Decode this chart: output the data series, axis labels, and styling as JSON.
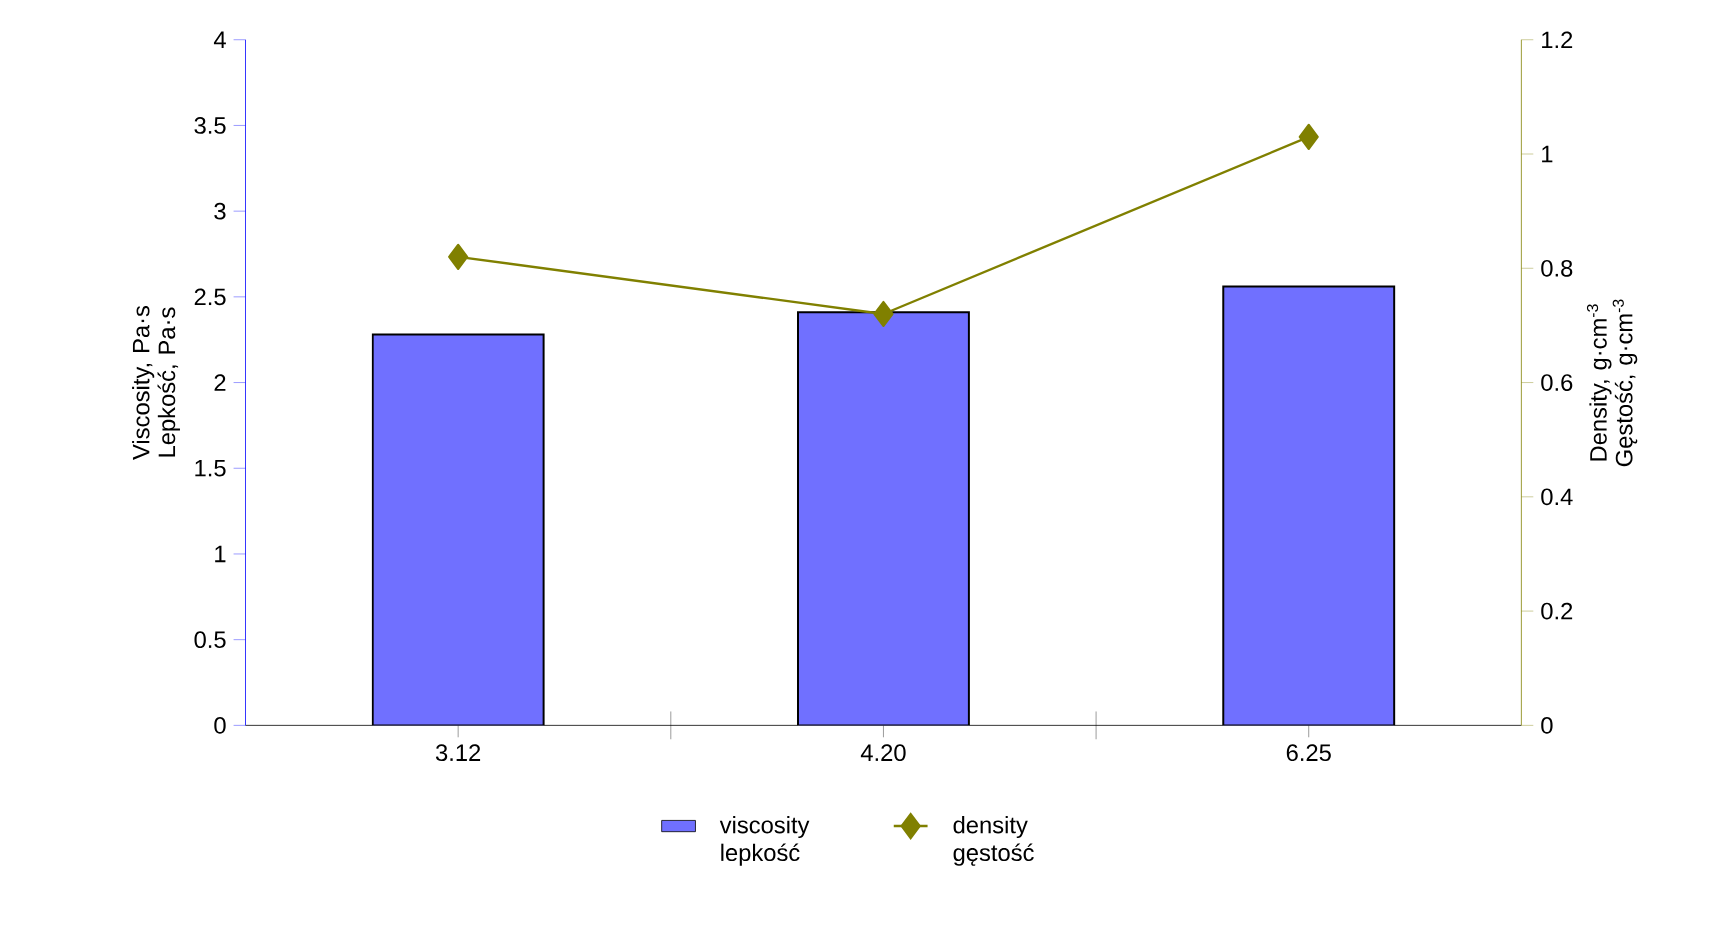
{
  "chart_data": {
    "type": "bar",
    "ylabel": "Viscosity, Pa·s Lepkość, Pa·s",
    "y2label": "Density, g·cm$^{-3}$ Gęstość, g·cm$^{-3}$",
    "categories": [
      "3.12",
      "4.20",
      "6.25"
    ],
    "series": [
      {
        "name": "viscosity lepkość",
        "color": "#7070ff",
        "values": [
          2.28,
          2.41,
          2.56
        ]
      },
      {
        "name": "density gęstość",
        "type": "line",
        "axis": "y2",
        "color": "#808000",
        "marker": "diamond",
        "values": [
          0.82,
          0.72,
          1.03
        ]
      }
    ],
    "ylim": [
      0,
      4
    ],
    "yticks": [
      0,
      0.5,
      1,
      1.5,
      2,
      2.5,
      3,
      3.5,
      4
    ],
    "y2lim": [
      0,
      1.2
    ],
    "y2ticks": [
      0,
      0.2,
      0.4,
      0.6,
      0.8,
      1,
      1.2
    ],
    "legend": "bottom",
    "grid": false
  }
}
